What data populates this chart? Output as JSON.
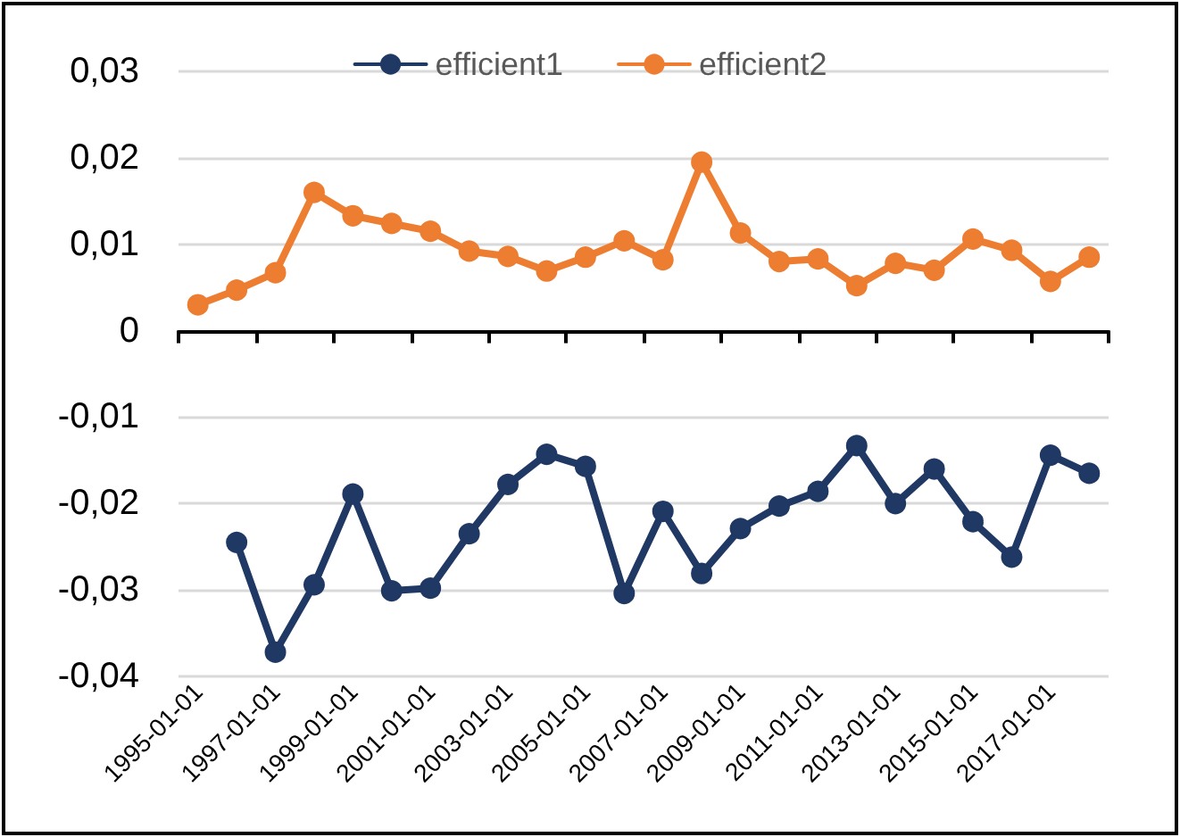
{
  "chart_data": {
    "type": "line",
    "categories": [
      "1995-01-01",
      null,
      "1997-01-01",
      null,
      "1999-01-01",
      null,
      "2001-01-01",
      null,
      "2003-01-01",
      null,
      "2005-01-01",
      null,
      "2007-01-01",
      null,
      "2009-01-01",
      null,
      "2011-01-01",
      null,
      "2013-01-01",
      null,
      "2015-01-01",
      null,
      "2017-01-01",
      null
    ],
    "series": [
      {
        "name": "efficient1",
        "color": "#1f3864",
        "values": [
          null,
          -0.0245,
          -0.0372,
          -0.0294,
          -0.0189,
          -0.0301,
          -0.0298,
          -0.0235,
          -0.0178,
          -0.0143,
          -0.0157,
          -0.0304,
          -0.0209,
          -0.0281,
          -0.0229,
          -0.0203,
          -0.0186,
          -0.0133,
          -0.02,
          -0.016,
          -0.0221,
          -0.0262,
          -0.0144,
          -0.0165
        ]
      },
      {
        "name": "efficient2",
        "color": "#ed7d31",
        "values": [
          0.003,
          0.0047,
          0.0067,
          0.016,
          0.0133,
          0.0124,
          0.0115,
          0.0092,
          0.0086,
          0.0069,
          0.0085,
          0.0104,
          0.0082,
          0.0195,
          0.0113,
          0.008,
          0.0083,
          0.0052,
          0.0078,
          0.007,
          0.0106,
          0.0093,
          0.0057,
          0.0085
        ]
      }
    ],
    "ylim": [
      -0.04,
      0.03
    ],
    "yticks": [
      {
        "value": -0.04,
        "label": "-0,04"
      },
      {
        "value": -0.03,
        "label": "-0,03"
      },
      {
        "value": -0.02,
        "label": "-0,02"
      },
      {
        "value": -0.01,
        "label": "-0,01"
      },
      {
        "value": 0,
        "label": "0"
      },
      {
        "value": 0.01,
        "label": "0,01"
      },
      {
        "value": 0.02,
        "label": "0,02"
      },
      {
        "value": 0.03,
        "label": "0,03"
      }
    ],
    "grid": "y",
    "legend": "top",
    "marker": "circle",
    "line_style": "solid"
  }
}
